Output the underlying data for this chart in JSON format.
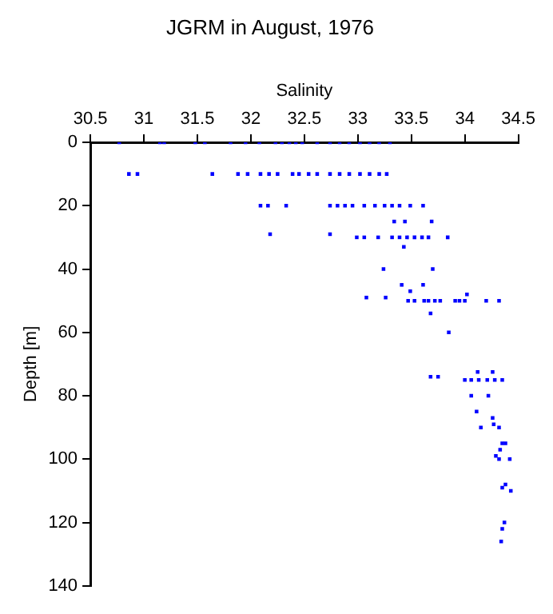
{
  "chart_data": {
    "type": "scatter",
    "title": "JGRM in August, 1976",
    "xlabel": "Salinity",
    "ylabel": "Depth [m]",
    "xlim": [
      30.5,
      34.5
    ],
    "xticks": [
      30.5,
      31,
      31.5,
      32,
      32.5,
      33,
      33.5,
      34,
      34.5
    ],
    "ylim": [
      140,
      0
    ],
    "yticks": [
      0,
      20,
      40,
      60,
      80,
      100,
      120,
      140
    ],
    "grid": false,
    "legend": false,
    "marker": "square",
    "series": [
      {
        "color": "#0000ff",
        "x": [
          30.77,
          31.15,
          31.19,
          31.48,
          31.57,
          31.81,
          31.95,
          32.08,
          32.23,
          32.29,
          32.36,
          32.42,
          32.48,
          32.62,
          32.74,
          32.83,
          32.92,
          33.02,
          33.11,
          33.2,
          33.3,
          30.86,
          30.94,
          31.64,
          31.88,
          31.97,
          32.09,
          32.17,
          32.25,
          32.39,
          32.45,
          32.54,
          32.62,
          32.74,
          32.83,
          32.92,
          33.02,
          33.11,
          33.2,
          33.27,
          32.09,
          32.16,
          32.33,
          32.74,
          32.81,
          32.88,
          32.95,
          33.06,
          33.16,
          33.25,
          33.32,
          33.39,
          33.49,
          33.61,
          33.34,
          33.44,
          33.69,
          32.18,
          32.74,
          32.99,
          33.06,
          33.19,
          33.32,
          33.39,
          33.46,
          33.53,
          33.6,
          33.66,
          33.84,
          33.43,
          33.24,
          33.7,
          33.41,
          33.61,
          33.49,
          33.08,
          33.26,
          33.47,
          33.53,
          33.62,
          33.66,
          33.72,
          33.77,
          33.91,
          33.95,
          34.0,
          34.2,
          34.32,
          34.02,
          33.68,
          33.85,
          33.68,
          33.75,
          34.12,
          34.26,
          34.0,
          34.06,
          34.13,
          34.21,
          34.28,
          34.35,
          34.06,
          34.22,
          34.11,
          34.26,
          34.27,
          34.15,
          34.32,
          34.35,
          34.38,
          34.33,
          34.29,
          34.32,
          34.42,
          34.38,
          34.35,
          34.43,
          34.37,
          34.35,
          34.34
        ],
        "values": [
          0,
          0,
          0,
          0,
          0,
          0,
          0,
          0,
          0,
          0,
          0,
          0,
          0,
          0,
          0,
          0,
          0,
          0,
          0,
          0,
          0,
          10,
          10,
          10,
          10,
          10,
          10,
          10,
          10,
          10,
          10,
          10,
          10,
          10,
          10,
          10,
          10,
          10,
          10,
          10,
          20,
          20,
          20,
          20,
          20,
          20,
          20,
          20,
          20,
          20,
          20,
          20,
          20,
          20,
          25,
          25,
          25,
          29,
          29,
          30,
          30,
          30,
          30,
          30,
          30,
          30,
          30,
          30,
          30,
          33,
          40,
          40,
          45,
          45,
          47,
          49,
          49,
          50,
          50,
          50,
          50,
          50,
          50,
          50,
          50,
          50,
          50,
          50,
          48,
          54,
          60,
          74,
          74,
          72.5,
          72.5,
          75,
          75,
          75,
          75,
          75,
          75,
          80,
          80,
          85,
          87,
          89,
          90,
          90,
          95,
          95,
          97,
          99,
          100,
          100,
          108,
          109,
          110,
          120,
          122,
          126
        ]
      }
    ]
  }
}
